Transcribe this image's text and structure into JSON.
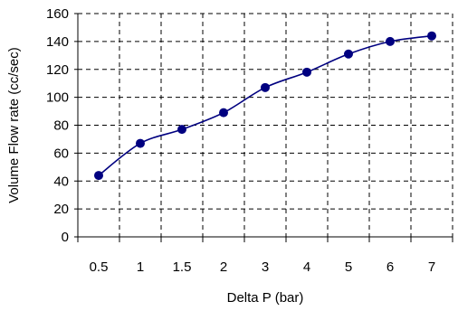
{
  "chart_data": {
    "type": "line",
    "xlabel": "Delta P (bar)",
    "ylabel": "Volume Flow rate (cc/sec)",
    "categories": [
      "0.5",
      "1",
      "1.5",
      "2",
      "3",
      "4",
      "5",
      "6",
      "7"
    ],
    "series": [
      {
        "values": [
          44,
          67,
          77,
          89,
          107,
          118,
          131,
          140,
          144
        ]
      }
    ],
    "ylim": [
      0,
      160
    ],
    "yticks": [
      0,
      20,
      40,
      60,
      80,
      100,
      120,
      140,
      160
    ],
    "grid": true,
    "plot_background": "#ffffff",
    "gridline_color": "#000000",
    "line_color": "#000080",
    "marker_color": "#000080"
  }
}
